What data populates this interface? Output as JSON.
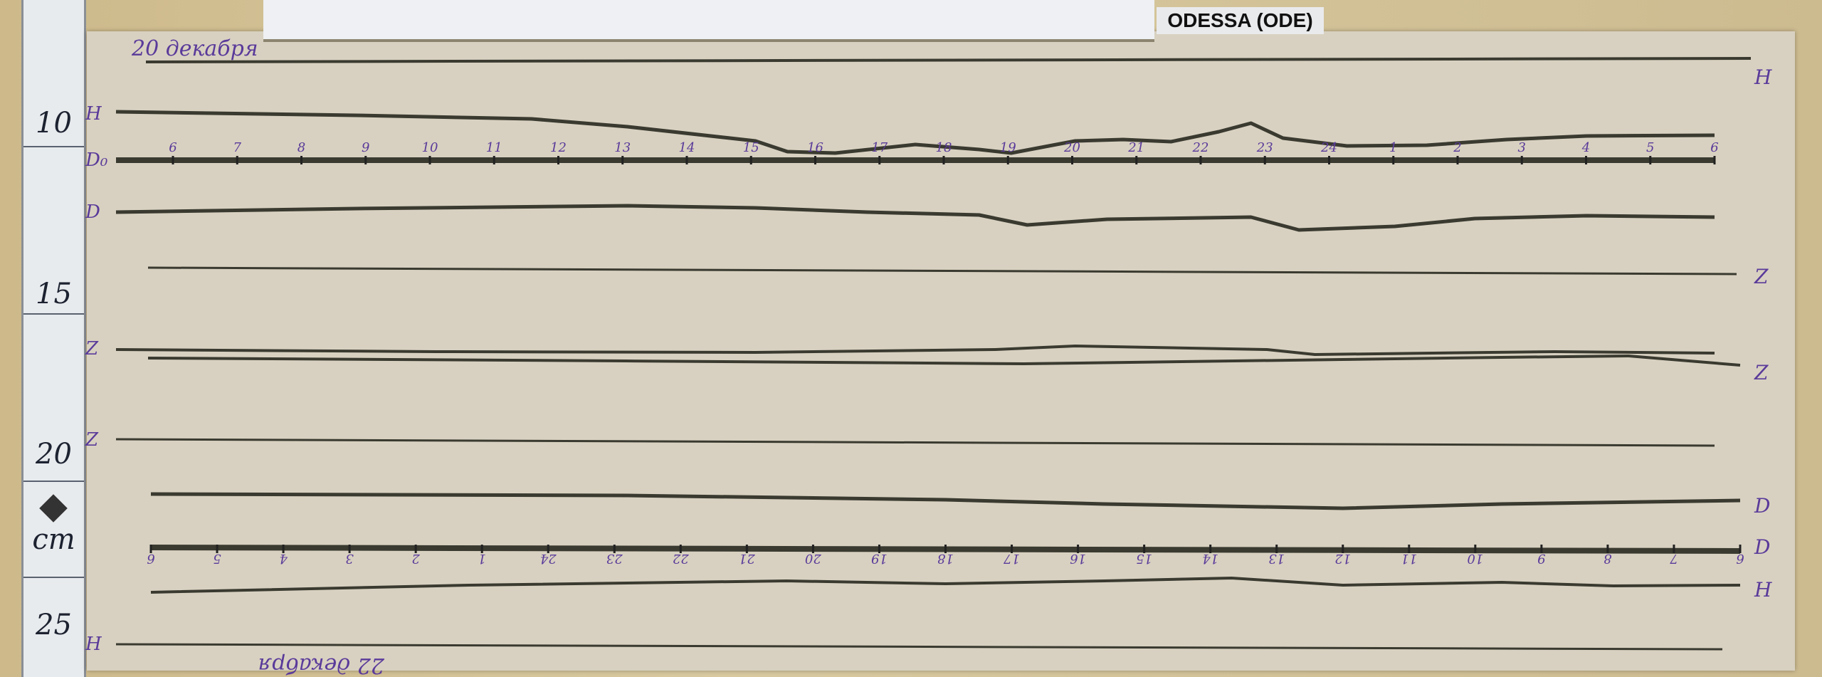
{
  "station_label": "ODESSA (ODE)",
  "ruler": {
    "marks": [
      "10",
      "15",
      "20",
      "cm",
      "25"
    ]
  },
  "handwriting": {
    "top_date": "20 декабря",
    "bottom_date": "22 декабря",
    "trace_labels_left": [
      "H",
      "D₀",
      "D",
      "Z",
      "Z",
      "H"
    ],
    "trace_labels_right": [
      "H",
      "Z",
      "Z",
      "D",
      "D",
      "H"
    ]
  },
  "top_hour_ticks": [
    "6",
    "7",
    "8",
    "9",
    "10",
    "11",
    "12",
    "13",
    "14",
    "15",
    "16",
    "17",
    "18",
    "19",
    "20",
    "21",
    "22",
    "23",
    "24",
    "1",
    "2",
    "3",
    "4",
    "5",
    "6"
  ],
  "bottom_hour_ticks": [
    "6",
    "5",
    "4",
    "3",
    "2",
    "1",
    "24",
    "23",
    "22",
    "21",
    "20",
    "19",
    "18",
    "17",
    "16",
    "15",
    "14",
    "13",
    "12",
    "11",
    "10",
    "9",
    "8",
    "7",
    "6"
  ],
  "colors": {
    "paper": "#d8d1c1",
    "trace": "#3a3a30",
    "ink": "#5a3a9a"
  }
}
